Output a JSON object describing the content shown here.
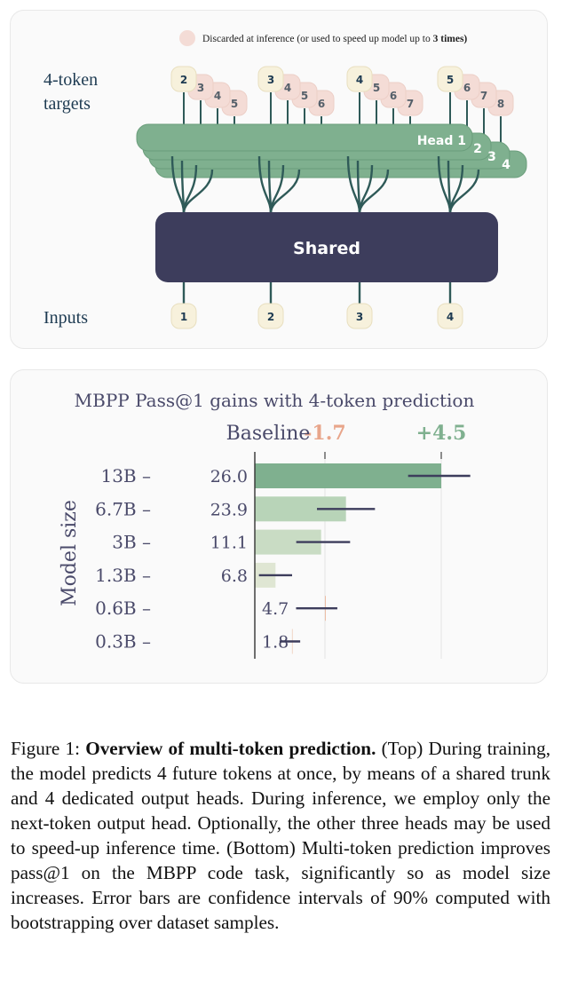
{
  "diagram": {
    "legend_text": "Discarded at inference (or used to speed up model up to ",
    "legend_bold": "3 times)",
    "targets_label_line1": "4-token",
    "targets_label_line2": "targets",
    "inputs_label": "Inputs",
    "shared_label": "Shared",
    "heads": [
      "Head 1",
      "2",
      "3",
      "4"
    ],
    "inputs": [
      "1",
      "2",
      "3",
      "4"
    ],
    "targets": [
      [
        "2",
        "3",
        "4",
        "5"
      ],
      [
        "3",
        "4",
        "5",
        "6"
      ],
      [
        "4",
        "5",
        "6",
        "7"
      ],
      [
        "5",
        "6",
        "7",
        "8"
      ]
    ],
    "colors": {
      "head": "#7fb08f",
      "shared": "#3d3d5c",
      "token_bg": "#f7f1dc",
      "discard": "#f4dcd6",
      "stem": "#2f5a58"
    }
  },
  "chart_data": {
    "type": "bar",
    "title": "MBPP Pass@1  gains with 4-token prediction",
    "ylabel": "Model size",
    "baseline_label": "Baseline",
    "left_label": "-1.7",
    "right_label": "+4.5",
    "xlim": [
      -1.7,
      4.5
    ],
    "categories": [
      "13B",
      "6.7B",
      "3B",
      "1.3B",
      "0.6B",
      "0.3B"
    ],
    "baseline_values": [
      "26.0",
      "23.9",
      "11.1",
      "6.8",
      "4.7",
      "1.8"
    ],
    "gains": [
      4.5,
      2.2,
      1.6,
      0.5,
      -1.7,
      -0.9
    ],
    "errors": [
      [
        3.7,
        5.2
      ],
      [
        1.5,
        2.9
      ],
      [
        1.0,
        2.3
      ],
      [
        0.1,
        0.9
      ],
      [
        -2.0,
        -1.0
      ],
      [
        -1.1,
        -0.6
      ]
    ],
    "colors": [
      "#7fb08f",
      "#b8d4b8",
      "#c9dcc4",
      "#dfe6d3",
      "#ecbea6",
      "#f1d6c6"
    ],
    "colors_meta": {
      "left_label": "#e8a58a",
      "right_label": "#7fb08f",
      "error": "#3d3d5c"
    }
  },
  "caption": {
    "figure_label": "Figure 1: ",
    "bold_title": "Overview of multi-token prediction.",
    "body": " (Top) During training, the model predicts 4 future tokens at once, by means of a shared trunk and 4 dedicated output heads. During inference, we employ only the next-token output head. Optionally, the other three heads may be used to speed-up inference time. (Bottom) Multi-token prediction improves pass@1 on the MBPP code task, significantly so as model size increases. Error bars are confidence intervals of 90% computed with bootstrapping over dataset samples."
  }
}
